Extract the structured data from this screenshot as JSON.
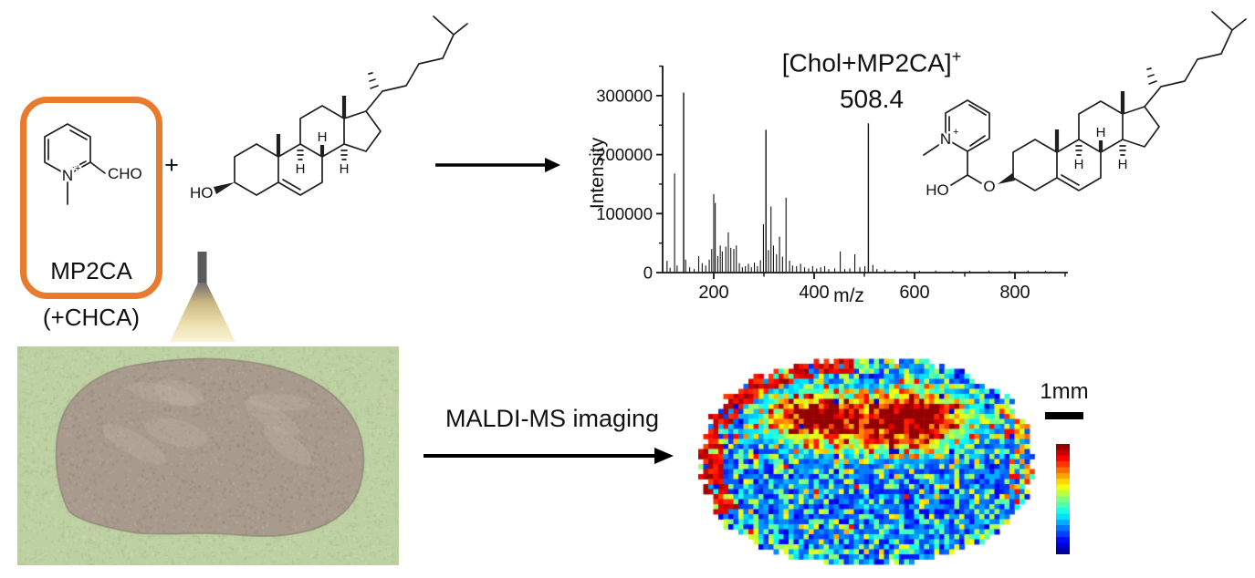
{
  "figure": {
    "reagent_box": {
      "label": "MP2CA",
      "sub_label": "(+CHCA)",
      "border_color": "#e87b2d"
    },
    "plus_sign": "+",
    "atoms": {
      "ho": "HO",
      "cho": "CHO",
      "n": "N",
      "n_charge": "+",
      "o": "O",
      "h": "H"
    },
    "maldi_label": "MALDI-MS imaging",
    "scale_bar_label": "1mm"
  },
  "chart_data": {
    "type": "bar",
    "title": "[Chol+MP2CA]+ 508.4 mass spectrum",
    "annotation_label": "[Chol+MP2CA]",
    "annotation_sup": "+",
    "annotation_value": "508.4",
    "xlabel": "m/z",
    "ylabel": "Intensity",
    "xlim": [
      98,
      905
    ],
    "ylim": [
      0,
      350000
    ],
    "xticks": [
      200,
      400,
      600,
      800
    ],
    "yticks": [
      0,
      100000,
      200000,
      300000
    ],
    "x_minor_ticks": [
      300,
      500,
      700,
      900
    ],
    "y_minor_ticks": [
      50000,
      150000,
      250000,
      350000
    ],
    "grid": false,
    "legend": false,
    "peaks": [
      [
        107,
        20000
      ],
      [
        113,
        8000
      ],
      [
        122,
        168000
      ],
      [
        127,
        12000
      ],
      [
        140,
        305000
      ],
      [
        144,
        22000
      ],
      [
        152,
        9000
      ],
      [
        161,
        6000
      ],
      [
        170,
        28000
      ],
      [
        177,
        16000
      ],
      [
        184,
        12000
      ],
      [
        191,
        22000
      ],
      [
        196,
        40000
      ],
      [
        200,
        133000
      ],
      [
        203,
        118000
      ],
      [
        208,
        28000
      ],
      [
        213,
        46000
      ],
      [
        217,
        36000
      ],
      [
        224,
        44000
      ],
      [
        229,
        68000
      ],
      [
        234,
        42000
      ],
      [
        240,
        40000
      ],
      [
        245,
        46000
      ],
      [
        251,
        16000
      ],
      [
        257,
        9000
      ],
      [
        263,
        11000
      ],
      [
        269,
        15000
      ],
      [
        275,
        9000
      ],
      [
        281,
        17000
      ],
      [
        287,
        11000
      ],
      [
        293,
        21000
      ],
      [
        299,
        82000
      ],
      [
        304,
        242000
      ],
      [
        309,
        38000
      ],
      [
        314,
        112000
      ],
      [
        319,
        46000
      ],
      [
        325,
        31000
      ],
      [
        331,
        61000
      ],
      [
        337,
        27000
      ],
      [
        344,
        127000
      ],
      [
        351,
        20000
      ],
      [
        357,
        12000
      ],
      [
        365,
        11000
      ],
      [
        373,
        15000
      ],
      [
        381,
        9000
      ],
      [
        389,
        7000
      ],
      [
        397,
        11000
      ],
      [
        405,
        7000
      ],
      [
        413,
        9000
      ],
      [
        421,
        11000
      ],
      [
        429,
        6000
      ],
      [
        441,
        7000
      ],
      [
        452,
        36000
      ],
      [
        461,
        6000
      ],
      [
        471,
        7000
      ],
      [
        481,
        31000
      ],
      [
        491,
        9000
      ],
      [
        501,
        11000
      ],
      [
        508,
        253000
      ],
      [
        517,
        13000
      ],
      [
        525,
        6000
      ],
      [
        541,
        5000
      ],
      [
        561,
        4000
      ],
      [
        585,
        3500
      ],
      [
        610,
        3000
      ],
      [
        642,
        3500
      ],
      [
        676,
        3000
      ],
      [
        710,
        3000
      ],
      [
        748,
        3500
      ],
      [
        789,
        3000
      ],
      [
        826,
        3500
      ],
      [
        861,
        3000
      ]
    ]
  },
  "heatmap": {
    "seed": 20,
    "palette": "jet",
    "min_color": "#00007f",
    "max_color": "#7f0000"
  },
  "tissue": {
    "seed": 7,
    "background_color": "#bdd0a2",
    "tissue_color": "#a89a8d"
  },
  "colorbar": {
    "steps": 19,
    "top_color": "#7f0000",
    "bottom_color": "#00007f"
  }
}
